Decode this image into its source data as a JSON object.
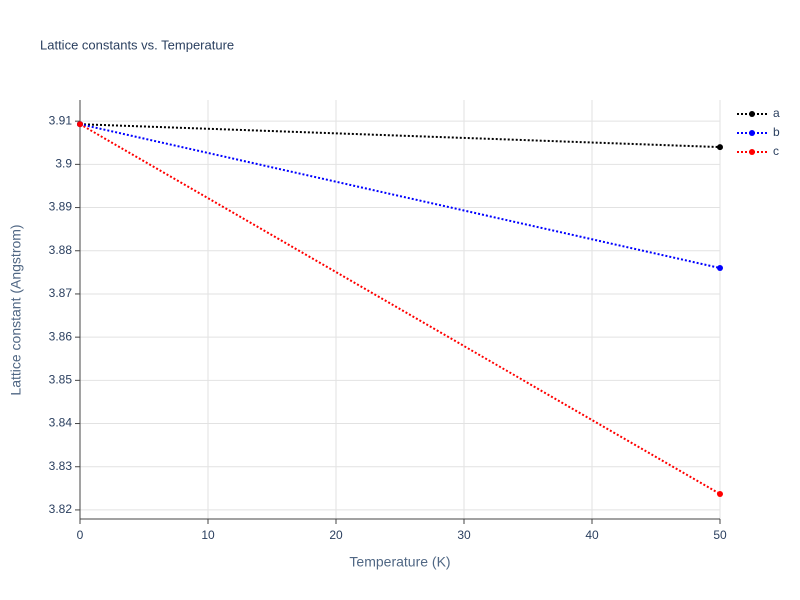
{
  "chart_data": {
    "type": "line",
    "title": "Lattice constants vs. Temperature",
    "x_label": "Temperature (K)",
    "y_label": "Lattice constant (Angstrom)",
    "x": [
      0,
      50
    ],
    "series": [
      {
        "name": "a",
        "color": "#000000",
        "values": [
          3.9093,
          3.904
        ]
      },
      {
        "name": "b",
        "color": "#0000ff",
        "values": [
          3.9093,
          3.876
        ]
      },
      {
        "name": "c",
        "color": "#ff0000",
        "values": [
          3.9093,
          3.8237
        ]
      }
    ],
    "xlim": [
      0,
      50
    ],
    "xticks": [
      0,
      10,
      20,
      30,
      40,
      50
    ],
    "ylim": [
      3.8179,
      3.9149
    ],
    "yticks": [
      3.82,
      3.83,
      3.84,
      3.85,
      3.86,
      3.87,
      3.88,
      3.89,
      3.9,
      3.91
    ],
    "grid": true,
    "legend": "top-right"
  }
}
